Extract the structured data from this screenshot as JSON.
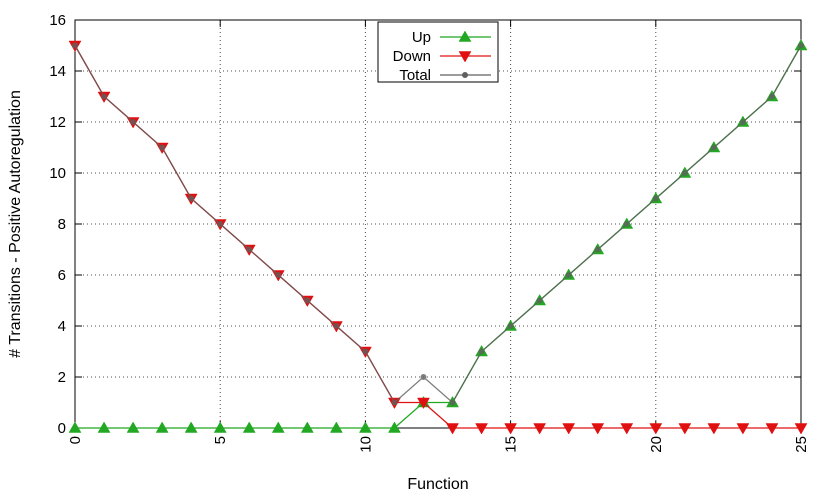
{
  "chart_data": {
    "type": "line",
    "title": "",
    "xlabel": "Function",
    "ylabel": "# Transitions - Positive Autoregulation",
    "xlim": [
      0,
      25
    ],
    "ylim": [
      0,
      16
    ],
    "xticks": [
      0,
      5,
      10,
      15,
      20,
      25
    ],
    "yticks": [
      0,
      2,
      4,
      6,
      8,
      10,
      12,
      14,
      16
    ],
    "grid": true,
    "legend_position": "top-center",
    "x": [
      0,
      1,
      2,
      3,
      4,
      5,
      6,
      7,
      8,
      9,
      10,
      11,
      12,
      13,
      14,
      15,
      16,
      17,
      18,
      19,
      20,
      21,
      22,
      23,
      24,
      25
    ],
    "series": [
      {
        "name": "Up",
        "color": "#22a822",
        "marker": "triangle-up",
        "values": [
          0,
          0,
          0,
          0,
          0,
          0,
          0,
          0,
          0,
          0,
          0,
          0,
          1,
          1,
          3,
          4,
          5,
          6,
          7,
          8,
          9,
          10,
          11,
          12,
          13,
          15
        ]
      },
      {
        "name": "Down",
        "color": "#e01010",
        "marker": "triangle-down",
        "values": [
          15,
          13,
          12,
          11,
          9,
          8,
          7,
          6,
          5,
          4,
          3,
          1,
          1,
          0,
          0,
          0,
          0,
          0,
          0,
          0,
          0,
          0,
          0,
          0,
          0,
          0
        ]
      },
      {
        "name": "Total",
        "color": "#606060",
        "marker": "circle",
        "values": [
          15,
          13,
          12,
          11,
          9,
          8,
          7,
          6,
          5,
          4,
          3,
          1,
          2,
          1,
          3,
          4,
          5,
          6,
          7,
          8,
          9,
          10,
          11,
          12,
          13,
          15
        ]
      }
    ]
  }
}
